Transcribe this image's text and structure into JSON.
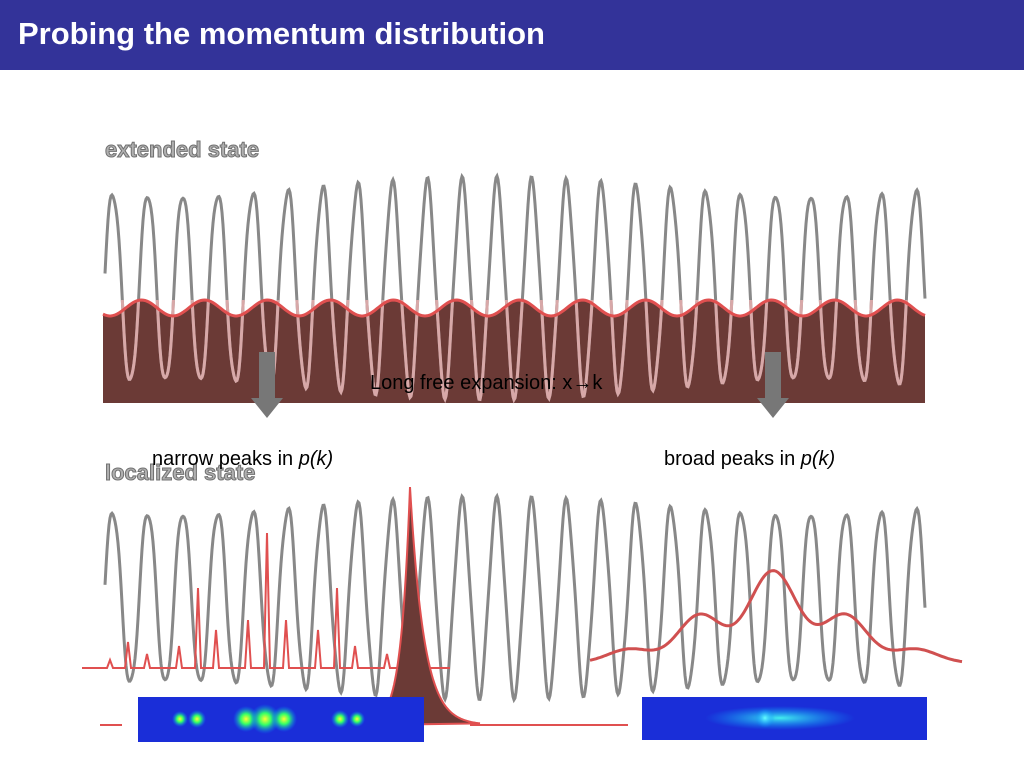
{
  "header": {
    "title": "Probing the momentum distribution"
  },
  "panels": {
    "extended": {
      "label": "extended state"
    },
    "localized": {
      "label": "localized state"
    }
  },
  "expansion": {
    "text": "Long free expansion:  x→k"
  },
  "narrow": {
    "text": "narrow peaks in ",
    "italic": "p(k)"
  },
  "broad": {
    "text": "broad peaks in ",
    "italic": "p(k)"
  }
}
